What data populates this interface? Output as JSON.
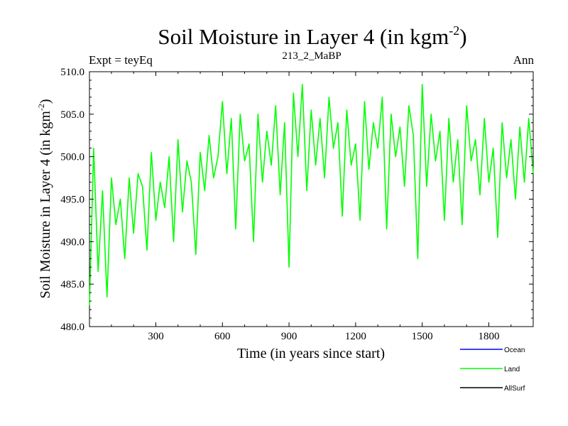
{
  "chart_data": {
    "type": "line",
    "title": "Soil Moisture in Layer 4 (in kgm",
    "title_sup": "-2",
    "title_end": ")",
    "subtitle_left": "Expt = teyEq",
    "subtitle_center": "213_2_MaBP",
    "subtitle_right": "Ann",
    "xlabel": "Time (in years since start)",
    "ylabel": "Soil Moisture in Layer 4 (in kgm",
    "ylabel_sup": "-2",
    "ylabel_end": ")",
    "xlim": [
      1,
      2000
    ],
    "ylim": [
      480,
      510
    ],
    "x_ticks": [
      300,
      600,
      900,
      1200,
      1500,
      1800
    ],
    "x_tick_labels": [
      "300",
      "600",
      "900",
      "1200",
      "1500",
      "1800"
    ],
    "y_ticks": [
      480,
      485,
      490,
      495,
      500,
      505,
      510
    ],
    "y_tick_labels": [
      "480.0",
      "485.0",
      "490.0",
      "495.0",
      "500.0",
      "505.0",
      "510.0"
    ],
    "legend_position": "bottom-right",
    "series": [
      {
        "name": "Ocean",
        "color": "#0000ff",
        "x": [],
        "values": []
      },
      {
        "name": "Land",
        "color": "#00ff00",
        "x": [
          1,
          20,
          40,
          60,
          80,
          100,
          120,
          140,
          160,
          180,
          200,
          220,
          240,
          260,
          280,
          300,
          320,
          340,
          360,
          380,
          400,
          420,
          440,
          460,
          480,
          500,
          520,
          540,
          560,
          580,
          600,
          620,
          640,
          660,
          680,
          700,
          720,
          740,
          760,
          780,
          800,
          820,
          840,
          860,
          880,
          900,
          920,
          940,
          960,
          980,
          1000,
          1020,
          1040,
          1060,
          1080,
          1100,
          1120,
          1140,
          1160,
          1180,
          1200,
          1220,
          1240,
          1260,
          1280,
          1300,
          1320,
          1340,
          1360,
          1380,
          1400,
          1420,
          1440,
          1460,
          1480,
          1500,
          1520,
          1540,
          1560,
          1580,
          1600,
          1620,
          1640,
          1660,
          1680,
          1700,
          1720,
          1740,
          1760,
          1780,
          1800,
          1820,
          1840,
          1860,
          1880,
          1900,
          1920,
          1940,
          1960,
          1980,
          2000
        ],
        "values": [
          482.5,
          501.0,
          486.5,
          496.0,
          483.5,
          497.5,
          492.0,
          495.0,
          488.0,
          497.5,
          491.0,
          498.0,
          496.5,
          489.0,
          500.5,
          492.5,
          497.0,
          494.0,
          500.0,
          490.0,
          502.0,
          493.5,
          499.5,
          497.0,
          488.5,
          500.5,
          496.0,
          502.5,
          497.5,
          500.0,
          506.5,
          498.0,
          504.5,
          491.5,
          505.0,
          499.5,
          501.5,
          490.0,
          505.0,
          497.0,
          503.0,
          499.0,
          506.0,
          495.5,
          504.0,
          487.0,
          507.5,
          500.0,
          508.5,
          496.0,
          505.5,
          499.0,
          504.5,
          497.5,
          507.0,
          501.0,
          504.0,
          493.0,
          505.5,
          499.0,
          501.5,
          492.5,
          506.5,
          498.5,
          504.0,
          501.0,
          507.0,
          491.5,
          505.0,
          500.0,
          503.5,
          496.5,
          506.0,
          502.5,
          488.0,
          508.5,
          496.5,
          505.0,
          499.5,
          503.0,
          492.5,
          504.5,
          497.0,
          502.0,
          492.0,
          506.0,
          499.5,
          502.0,
          495.5,
          504.5,
          497.0,
          501.0,
          490.5,
          504.0,
          497.5,
          502.0,
          495.0,
          503.5,
          497.0,
          504.5,
          498.0
        ]
      },
      {
        "name": "AllSurf",
        "color": "#000000",
        "x": [],
        "values": []
      }
    ]
  }
}
